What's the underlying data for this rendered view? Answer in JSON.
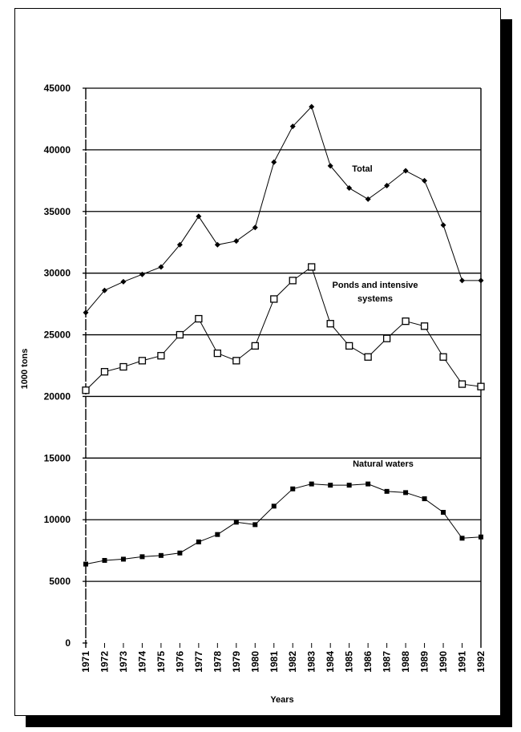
{
  "chart_data": {
    "type": "line",
    "title": "",
    "xlabel": "Years",
    "ylabel": "1000 tons",
    "ylim": [
      0,
      45000
    ],
    "yticks": [
      0,
      5000,
      10000,
      15000,
      20000,
      25000,
      30000,
      35000,
      40000,
      45000
    ],
    "ytick_labels": [
      "0",
      "5000",
      "10000",
      "15000",
      "20000",
      "25000",
      "30000",
      "35000",
      "40000",
      "45000"
    ],
    "grid": true,
    "x": [
      "1971",
      "1972",
      "1973",
      "1974",
      "1975",
      "1976",
      "1977",
      "1978",
      "1979",
      "1980",
      "1981",
      "1982",
      "1983",
      "1984",
      "1985",
      "1986",
      "1987",
      "1988",
      "1989",
      "1990",
      "1991",
      "1992"
    ],
    "series": [
      {
        "name": "Total",
        "marker": "filled-diamond",
        "values": [
          26800,
          28600,
          29300,
          29900,
          30500,
          32300,
          34600,
          32300,
          32600,
          33700,
          39000,
          41900,
          43500,
          38700,
          36900,
          36000,
          37100,
          38300,
          37500,
          33900,
          29400,
          29400
        ]
      },
      {
        "name": "Ponds and intensive systems",
        "marker": "open-square",
        "values": [
          20500,
          22000,
          22400,
          22900,
          23300,
          25000,
          26300,
          23500,
          22900,
          24100,
          27900,
          29400,
          30500,
          25900,
          24100,
          23200,
          24700,
          26100,
          25700,
          23200,
          21000,
          20800
        ]
      },
      {
        "name": "Natural waters",
        "marker": "filled-square",
        "values": [
          6400,
          6700,
          6800,
          7000,
          7100,
          7300,
          8200,
          8800,
          9800,
          9600,
          11100,
          12500,
          12900,
          12800,
          12800,
          12900,
          12300,
          12200,
          11700,
          10600,
          8500,
          8600
        ]
      }
    ],
    "annotations": {
      "total": "Total",
      "ponds_line1": "Ponds and intensive",
      "ponds_line2": "systems",
      "natural": "Natural waters"
    },
    "colors": {
      "line": "#000000",
      "background": "#ffffff"
    }
  }
}
